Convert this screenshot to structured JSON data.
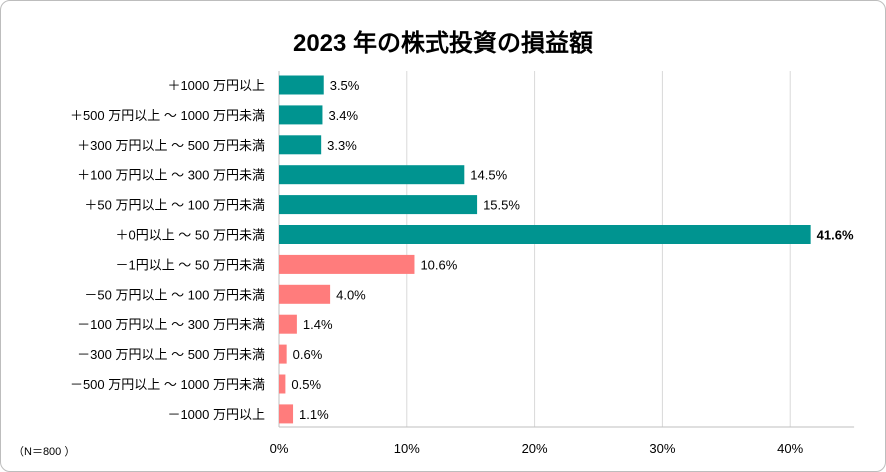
{
  "chart_data": {
    "type": "bar",
    "orientation": "horizontal",
    "title": "2023  年の株式投資の損益額",
    "note": "（N＝800 ）",
    "categories": [
      "＋1000 万円以上",
      "＋500 万円以上 ～ 1000 万円未満",
      "＋300 万円以上 ～ 500 万円未満",
      "＋100 万円以上 ～ 300 万円未満",
      "＋50 万円以上 ～ 100 万円未満",
      "＋0円以上 ～ 50 万円未満",
      "－1円以上 ～ 50 万円未満",
      "－50 万円以上 ～ 100 万円未満",
      "－100 万円以上 ～ 300 万円未満",
      "－300 万円以上 ～ 500 万円未満",
      "－500 万円以上 ～ 1000 万円未満",
      "－1000 万円以上"
    ],
    "values": [
      3.5,
      3.4,
      3.3,
      14.5,
      15.5,
      41.6,
      10.6,
      4.0,
      1.4,
      0.6,
      0.5,
      1.1
    ],
    "value_labels": [
      "3.5%",
      "3.4%",
      "3.3%",
      "14.5%",
      "15.5%",
      "41.6%",
      "10.6%",
      "4.0%",
      "1.4%",
      "0.6%",
      "0.5%",
      "1.1%"
    ],
    "bold_label_index": 5,
    "colors": {
      "gain": "#009490",
      "loss": "#FF7C7C"
    },
    "gain_count": 6,
    "xlim": [
      0,
      45
    ],
    "xticks": [
      0,
      10,
      20,
      30,
      40
    ],
    "xtick_labels": [
      "0%",
      "10%",
      "20%",
      "30%",
      "40%"
    ],
    "grid": true
  }
}
